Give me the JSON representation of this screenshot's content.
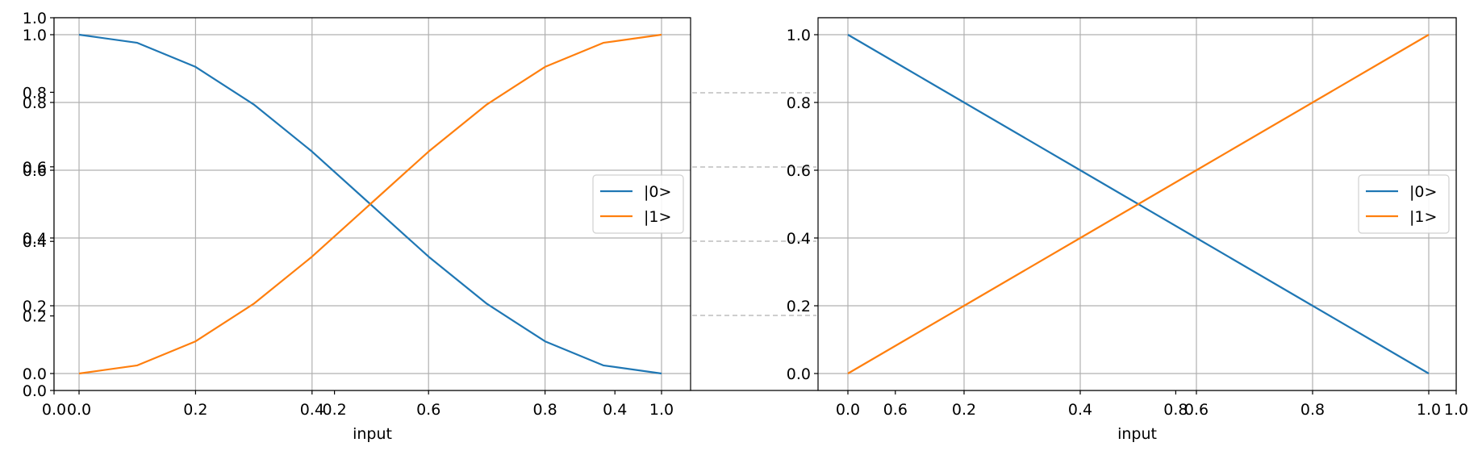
{
  "colors": {
    "state0": "#1f77b4",
    "state1": "#ff7f0e",
    "grid": "#b0b0b0"
  },
  "chart_data": [
    {
      "type": "line",
      "xlabel": "input",
      "ylabel": "",
      "xlim": [
        0,
        1
      ],
      "ylim": [
        -0.05,
        1.05
      ],
      "x_ticks": [
        "0.0",
        "0.2",
        "0.4",
        "0.6",
        "0.8",
        "1.0"
      ],
      "y_ticks": [
        "0.0",
        "0.2",
        "0.4",
        "0.6",
        "0.8",
        "1.0"
      ],
      "grid": true,
      "legend_position": "center-right",
      "series": [
        {
          "name": "|0>",
          "x": [
            0,
            0.1,
            0.2,
            0.3,
            0.4,
            0.5,
            0.6,
            0.7,
            0.8,
            0.9,
            1.0
          ],
          "y": [
            1.0,
            0.976,
            0.905,
            0.794,
            0.655,
            0.5,
            0.345,
            0.206,
            0.095,
            0.024,
            0.0
          ]
        },
        {
          "name": "|1>",
          "x": [
            0,
            0.1,
            0.2,
            0.3,
            0.4,
            0.5,
            0.6,
            0.7,
            0.8,
            0.9,
            1.0
          ],
          "y": [
            0.0,
            0.024,
            0.095,
            0.206,
            0.345,
            0.5,
            0.655,
            0.794,
            0.905,
            0.976,
            1.0
          ]
        }
      ]
    },
    {
      "type": "line",
      "xlabel": "input",
      "ylabel": "",
      "xlim": [
        0,
        1
      ],
      "ylim": [
        -0.05,
        1.05
      ],
      "x_ticks": [
        "0.0",
        "0.2",
        "0.4",
        "0.6",
        "0.8",
        "1.0"
      ],
      "y_ticks": [
        "0.0",
        "0.2",
        "0.4",
        "0.6",
        "0.8",
        "1.0"
      ],
      "grid": true,
      "legend_position": "center-right",
      "series": [
        {
          "name": "|0>",
          "x": [
            0,
            0.1,
            0.2,
            0.3,
            0.4,
            0.5,
            0.6,
            0.7,
            0.8,
            0.9,
            1.0
          ],
          "y": [
            1.0,
            0.9,
            0.8,
            0.7,
            0.6,
            0.5,
            0.4,
            0.3,
            0.2,
            0.1,
            0.0
          ]
        },
        {
          "name": "|1>",
          "x": [
            0,
            0.1,
            0.2,
            0.3,
            0.4,
            0.5,
            0.6,
            0.7,
            0.8,
            0.9,
            1.0
          ],
          "y": [
            0.0,
            0.1,
            0.2,
            0.3,
            0.4,
            0.5,
            0.6,
            0.7,
            0.8,
            0.9,
            1.0
          ]
        }
      ]
    },
    {
      "type": "line",
      "xlabel": "",
      "ylabel": "",
      "xlim": [
        0,
        1
      ],
      "ylim": [
        0,
        1
      ],
      "x_ticks": [
        "0.0",
        "0.2",
        "0.4",
        "0.6",
        "0.8",
        "1.0"
      ],
      "y_ticks": [
        "0.0",
        "0.2",
        "0.4",
        "0.6",
        "0.8",
        "1.0"
      ],
      "grid": false,
      "series": []
    }
  ]
}
